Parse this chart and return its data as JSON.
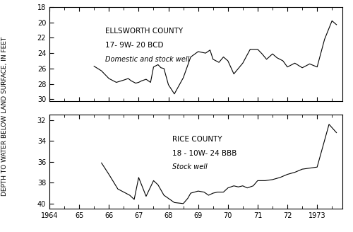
{
  "top": {
    "title_line1": "ELLSWORTH COUNTY",
    "title_line2": "17- 9W- 20 BCD",
    "title_line3": "Domestic and stock well",
    "ylim": [
      30.2,
      18.0
    ],
    "yticks": [
      18,
      20,
      22,
      24,
      26,
      28,
      30
    ],
    "x": [
      1965.5,
      1965.75,
      1966.0,
      1966.25,
      1966.5,
      1966.65,
      1966.75,
      1966.9,
      1967.0,
      1967.1,
      1967.25,
      1967.4,
      1967.5,
      1967.65,
      1967.75,
      1967.85,
      1968.0,
      1968.2,
      1968.5,
      1968.75,
      1969.0,
      1969.25,
      1969.4,
      1969.5,
      1969.7,
      1969.85,
      1970.0,
      1970.2,
      1970.5,
      1970.75,
      1971.0,
      1971.15,
      1971.3,
      1971.5,
      1971.65,
      1971.85,
      1972.0,
      1972.25,
      1972.5,
      1972.75,
      1973.0,
      1973.25,
      1973.5,
      1973.65
    ],
    "y": [
      25.7,
      26.3,
      27.3,
      27.8,
      27.5,
      27.3,
      27.6,
      27.9,
      27.8,
      27.6,
      27.4,
      27.8,
      25.8,
      25.5,
      25.9,
      26.0,
      28.1,
      29.3,
      27.2,
      24.5,
      23.8,
      24.0,
      23.6,
      24.8,
      25.2,
      24.5,
      25.0,
      26.7,
      25.3,
      23.5,
      23.5,
      24.1,
      24.8,
      24.1,
      24.6,
      25.0,
      25.8,
      25.3,
      25.9,
      25.4,
      25.8,
      22.2,
      19.8,
      20.3
    ]
  },
  "bottom": {
    "title_line1": "RICE COUNTY",
    "title_line2": "18 - 10W- 24 BBB",
    "title_line3": "Stock well",
    "ylim": [
      40.5,
      31.5
    ],
    "yticks": [
      32,
      34,
      36,
      38,
      40
    ],
    "x": [
      1965.75,
      1966.0,
      1966.3,
      1966.7,
      1966.85,
      1967.0,
      1967.25,
      1967.5,
      1967.65,
      1967.85,
      1968.0,
      1968.2,
      1968.5,
      1968.65,
      1968.75,
      1969.0,
      1969.2,
      1969.35,
      1969.5,
      1969.65,
      1969.85,
      1970.0,
      1970.2,
      1970.35,
      1970.5,
      1970.65,
      1970.85,
      1971.0,
      1971.25,
      1971.5,
      1971.75,
      1972.0,
      1972.25,
      1972.5,
      1972.75,
      1973.0,
      1973.4,
      1973.65
    ],
    "y": [
      36.1,
      37.2,
      38.6,
      39.2,
      39.6,
      37.5,
      39.3,
      37.8,
      38.2,
      39.2,
      39.5,
      39.9,
      40.0,
      39.5,
      39.0,
      38.8,
      38.9,
      39.2,
      39.0,
      38.9,
      38.9,
      38.5,
      38.3,
      38.4,
      38.3,
      38.5,
      38.3,
      37.8,
      37.8,
      37.7,
      37.5,
      37.2,
      37.0,
      36.7,
      36.6,
      36.5,
      32.4,
      33.2
    ]
  },
  "xlim": [
    1964.0,
    1973.85
  ],
  "xticks": [
    1964,
    1965,
    1966,
    1967,
    1968,
    1969,
    1970,
    1971,
    1972,
    1973
  ],
  "xticklabels": [
    "1964",
    "65",
    "66",
    "67",
    "68",
    "69",
    "70",
    "71",
    "72",
    "1973"
  ],
  "ylabel": "DEPTH TO WATER BELOW LAND SURFACE, IN FEET",
  "line_color": "#000000",
  "face_color": "#ffffff"
}
